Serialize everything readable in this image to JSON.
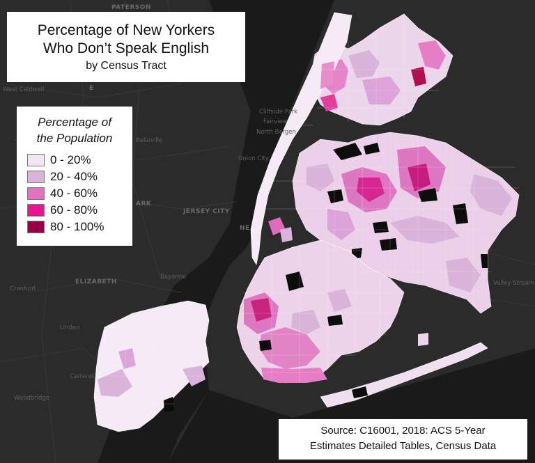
{
  "title": {
    "line1": "Percentage of New Yorkers",
    "line2": "Who Don’t Speak English",
    "subtitle": "by Census Tract"
  },
  "legend": {
    "title_line1": "Percentage of",
    "title_line2": "the Population",
    "items": [
      {
        "label": "0 - 20%",
        "color": "#f3e6f3"
      },
      {
        "label": "20 - 40%",
        "color": "#d9b3da"
      },
      {
        "label": "40 - 60%",
        "color": "#df72bf"
      },
      {
        "label": "60 - 80%",
        "color": "#e3178f"
      },
      {
        "label": "80 - 100%",
        "color": "#9b0047"
      }
    ]
  },
  "source": {
    "line1": "Source: C16001, 2018: ACS 5-Year",
    "line2": "Estimates Detailed Tables, Census Data"
  },
  "basemap_places": {
    "paterson": "PATERSON",
    "west_caldwell": "West Caldwell",
    "cliffside_park": "Cliffside Park",
    "fairview": "Fairview",
    "north_bergen": "North Bergen",
    "union_city": "Union City",
    "belleville": "Belleville",
    "jersey_city": "JERSEY CITY",
    "ark": "ARK",
    "elizabeth": "ELIZABETH",
    "cranford": "Cranford",
    "bayonne": "Bayonne",
    "linden": "Linden",
    "carteret": "Carteret",
    "woodbridge": "Woodbridge",
    "valley_stream": "Valley Stream",
    "e_letter": "E",
    "ne": "NE"
  },
  "colors": {
    "background": "#242424",
    "water": "#181818",
    "land": "#2f2f2f",
    "tract_lines": "#ffffff",
    "no_data": "#0d0d0d"
  }
}
